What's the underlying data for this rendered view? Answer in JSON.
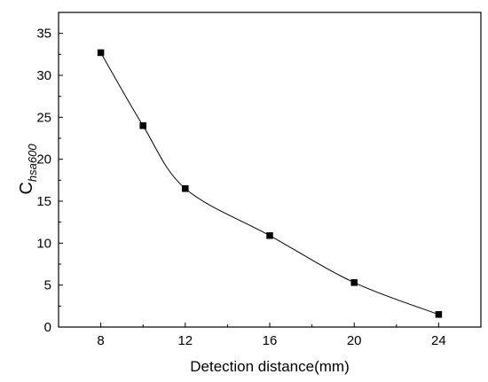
{
  "chart_data": {
    "type": "scatter",
    "title": "",
    "xlabel": "Detection distance(mm)",
    "ylabel": {
      "main": "C",
      "sub": "hsa600"
    },
    "x": [
      8,
      10,
      12,
      16,
      20,
      24
    ],
    "y": [
      32.7,
      24.0,
      16.5,
      10.9,
      5.3,
      1.5
    ],
    "xlim": [
      6,
      26
    ],
    "ylim": [
      0,
      37.5
    ],
    "xticks": [
      "8",
      "12",
      "16",
      "20",
      "24"
    ],
    "yticks": [
      "0",
      "5",
      "10",
      "15",
      "20",
      "25",
      "30",
      "35"
    ],
    "marker": "square",
    "line": "smooth",
    "grid": false,
    "legend": false,
    "colors": {
      "marker": "#000000",
      "line": "#000000",
      "axis": "#000000"
    }
  }
}
